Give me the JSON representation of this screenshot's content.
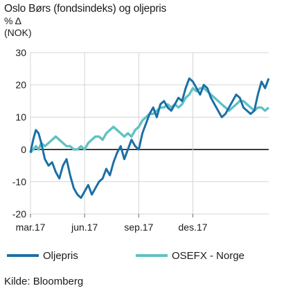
{
  "chart_data": {
    "type": "line",
    "title": "Oslo Børs (fondsindeks) og oljepris",
    "ylabel_line1": "% Δ",
    "ylabel_line2": "(NOK)",
    "ylim": [
      -20,
      30
    ],
    "yticks": [
      30,
      20,
      10,
      0,
      -10,
      -20
    ],
    "xlim": [
      0,
      13.2
    ],
    "xticks": [
      {
        "pos": 0,
        "label": "mar.17"
      },
      {
        "pos": 3,
        "label": "jun.17"
      },
      {
        "pos": 6,
        "label": "sep.17"
      },
      {
        "pos": 9,
        "label": "des.17"
      }
    ],
    "grid": true,
    "legend_position": "bottom",
    "series": [
      {
        "name": "Oljepris",
        "color": "#1a6fa6",
        "x": [
          0,
          0.15,
          0.3,
          0.45,
          0.6,
          0.8,
          1.0,
          1.2,
          1.4,
          1.6,
          1.8,
          2.0,
          2.2,
          2.4,
          2.6,
          2.8,
          3.0,
          3.2,
          3.4,
          3.6,
          3.8,
          4.0,
          4.2,
          4.4,
          4.6,
          4.8,
          5.0,
          5.2,
          5.4,
          5.6,
          5.8,
          6.0,
          6.2,
          6.4,
          6.6,
          6.8,
          7.0,
          7.2,
          7.4,
          7.6,
          7.8,
          8.0,
          8.2,
          8.4,
          8.6,
          8.8,
          9.0,
          9.2,
          9.4,
          9.6,
          9.8,
          10.0,
          10.2,
          10.4,
          10.6,
          10.8,
          11.0,
          11.2,
          11.4,
          11.6,
          11.8,
          12.0,
          12.2,
          12.4,
          12.6,
          12.8,
          13.0,
          13.2
        ],
        "values": [
          -1,
          3,
          6,
          5,
          2,
          -3,
          -5,
          -4,
          -7,
          -9,
          -5,
          -3,
          -8,
          -12,
          -14,
          -15,
          -13,
          -11,
          -14,
          -12,
          -10,
          -9,
          -6,
          -8,
          -4,
          -1,
          1,
          -3,
          0,
          3,
          1,
          0,
          5,
          8,
          11,
          13,
          10,
          14,
          15,
          13,
          12,
          14,
          16,
          15,
          19,
          22,
          21,
          19,
          17,
          20,
          19,
          16,
          14,
          12,
          10,
          11,
          13,
          15,
          17,
          16,
          13,
          12,
          11,
          12,
          17,
          21,
          19,
          22
        ]
      },
      {
        "name": "OSEFX - Norge",
        "color": "#5fc1c4",
        "x": [
          0,
          0.15,
          0.3,
          0.45,
          0.6,
          0.8,
          1.0,
          1.2,
          1.4,
          1.6,
          1.8,
          2.0,
          2.2,
          2.4,
          2.6,
          2.8,
          3.0,
          3.2,
          3.4,
          3.6,
          3.8,
          4.0,
          4.2,
          4.4,
          4.6,
          4.8,
          5.0,
          5.2,
          5.4,
          5.6,
          5.8,
          6.0,
          6.2,
          6.4,
          6.6,
          6.8,
          7.0,
          7.2,
          7.4,
          7.6,
          7.8,
          8.0,
          8.2,
          8.4,
          8.6,
          8.8,
          9.0,
          9.2,
          9.4,
          9.6,
          9.8,
          10.0,
          10.2,
          10.4,
          10.6,
          10.8,
          11.0,
          11.2,
          11.4,
          11.6,
          11.8,
          12.0,
          12.2,
          12.4,
          12.6,
          12.8,
          13.0,
          13.2
        ],
        "values": [
          -1,
          0,
          1,
          0,
          2,
          1,
          2,
          3,
          4,
          3,
          2,
          1,
          1,
          0,
          0,
          1,
          0,
          2,
          3,
          4,
          4,
          3,
          5,
          6,
          7,
          6,
          5,
          4,
          5,
          4,
          6,
          7,
          9,
          10,
          11,
          11,
          12,
          13,
          13,
          14,
          13,
          14,
          13,
          14,
          16,
          17,
          19,
          18,
          19,
          19,
          18,
          17,
          16,
          15,
          14,
          13,
          12,
          13,
          14,
          15,
          15,
          14,
          13,
          12,
          13,
          13,
          12,
          13
        ]
      }
    ]
  },
  "source": "Kilde: Bloomberg"
}
